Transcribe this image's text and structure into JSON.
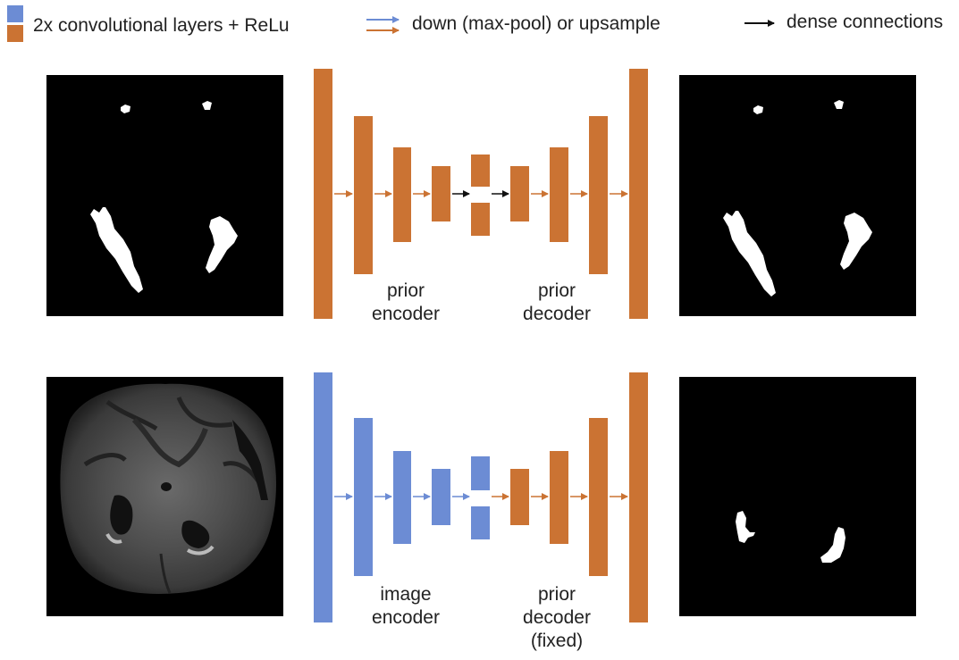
{
  "colors": {
    "encoder_blue": "#6c8cd4",
    "conv_orange": "#cb7333",
    "dense_arrow": "#111111",
    "image_background": "#000000"
  },
  "legend": {
    "conv_block": "2x convolutional layers + ReLu",
    "down_up": "down (max-pool) or upsample",
    "dense": "dense connections"
  },
  "top_row": {
    "encoder_label": [
      "prior",
      "encoder"
    ],
    "decoder_label": [
      "prior",
      "decoder"
    ],
    "input_image": "lesion-mask",
    "output_image": "lesion-mask"
  },
  "bottom_row": {
    "encoder_label": [
      "image",
      "encoder"
    ],
    "decoder_label": [
      "prior",
      "decoder",
      "(fixed)"
    ],
    "input_image": "brain-mri-slice",
    "output_image": "lesion-mask"
  },
  "icons": {
    "legend_swatch": "color-swatch-icon",
    "legend_arrow": "arrow-right-icon"
  }
}
